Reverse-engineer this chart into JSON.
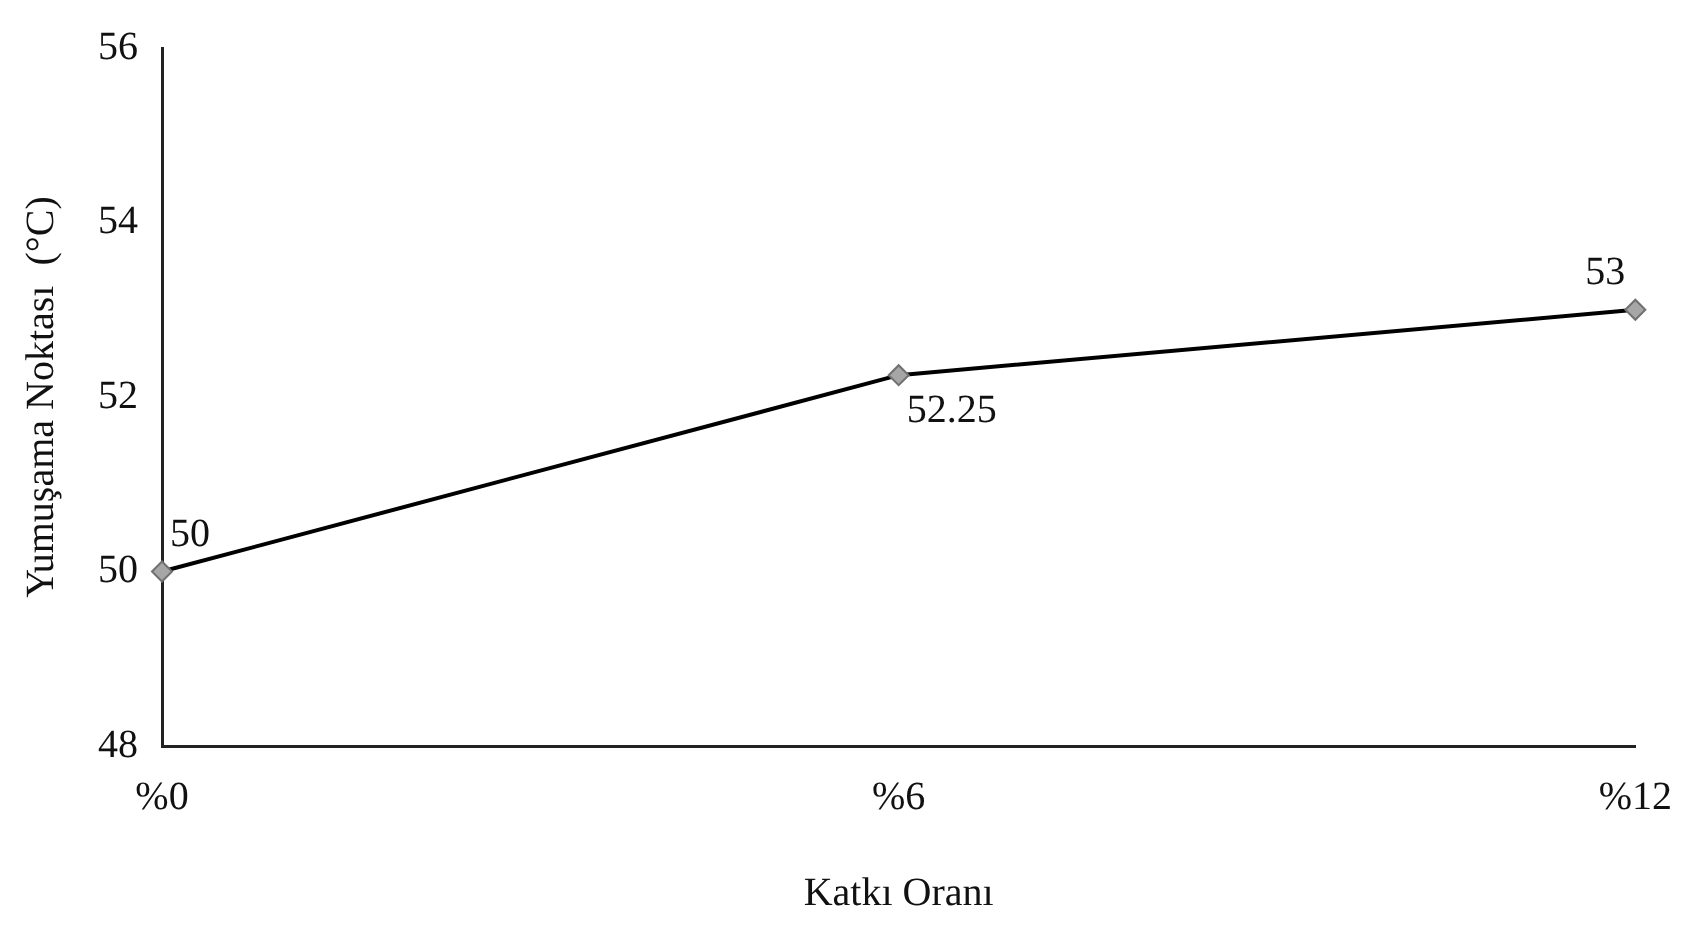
{
  "chart_data": {
    "type": "line",
    "xlabel": "Katkı Oranı",
    "ylabel": "Yumuşama Noktası  (°C)",
    "categories": [
      "%0",
      "%6",
      "%12"
    ],
    "series": [
      {
        "color": "#000000",
        "values": [
          50,
          52.25,
          53
        ]
      }
    ],
    "ylim": [
      48,
      56
    ],
    "yticks": [
      48,
      50,
      52,
      54,
      56
    ],
    "grid": false,
    "legend": false,
    "marker": "diamond",
    "line_style": "solid",
    "data_labels": true
  }
}
